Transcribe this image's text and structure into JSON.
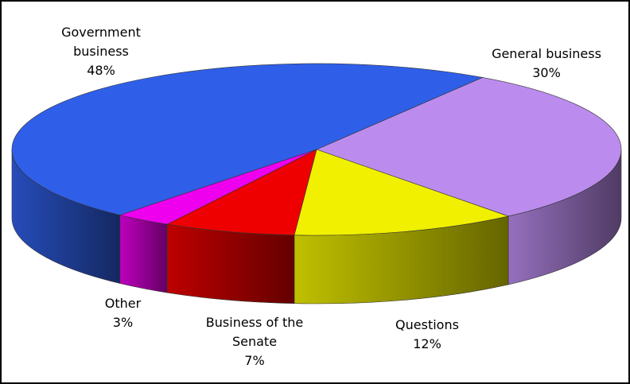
{
  "chart_data": {
    "type": "pie",
    "categories": [
      "General business",
      "Questions",
      "Business of the Senate",
      "Other",
      "Government business"
    ],
    "values": [
      30,
      12,
      7,
      3,
      48
    ],
    "value_labels": [
      "30%",
      "12%",
      "7%",
      "3%",
      "48%"
    ],
    "colors": [
      "#bb8ced",
      "#f0f000",
      "#ee0000",
      "#ee00ee",
      "#2f5fe8"
    ]
  }
}
